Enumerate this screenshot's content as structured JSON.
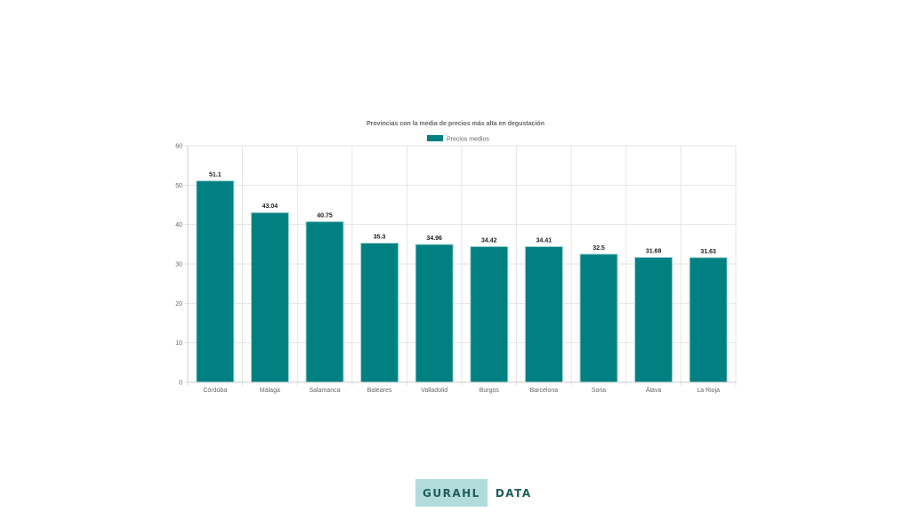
{
  "chart_data": {
    "type": "bar",
    "title": "Provincias con la media de precios más alta en degustación",
    "legend": {
      "position": "top",
      "entries": [
        "Precios medios"
      ]
    },
    "categories": [
      "Córdoba",
      "Málaga",
      "Salamanca",
      "Baleares",
      "Valladolid",
      "Burgos",
      "Barcelona",
      "Soria",
      "Álava",
      "La Rioja"
    ],
    "series": [
      {
        "name": "Precios medios",
        "values": [
          51.1,
          43.04,
          40.75,
          35.3,
          34.96,
          34.42,
          34.41,
          32.5,
          31.68,
          31.63
        ]
      }
    ],
    "data_labels": [
      "51.1",
      "43.04",
      "40.75",
      "35.3",
      "34.96",
      "34.42",
      "34.41",
      "32.5",
      "31.68",
      "31.63"
    ],
    "ylim": [
      0,
      60
    ],
    "yticks": [
      0,
      10,
      20,
      30,
      40,
      50,
      60
    ],
    "grid": true,
    "colors": {
      "bar": "#008080",
      "bar_border": "#9fd3d3"
    }
  },
  "brand": {
    "left": "GURAHL",
    "right": "DATA"
  }
}
